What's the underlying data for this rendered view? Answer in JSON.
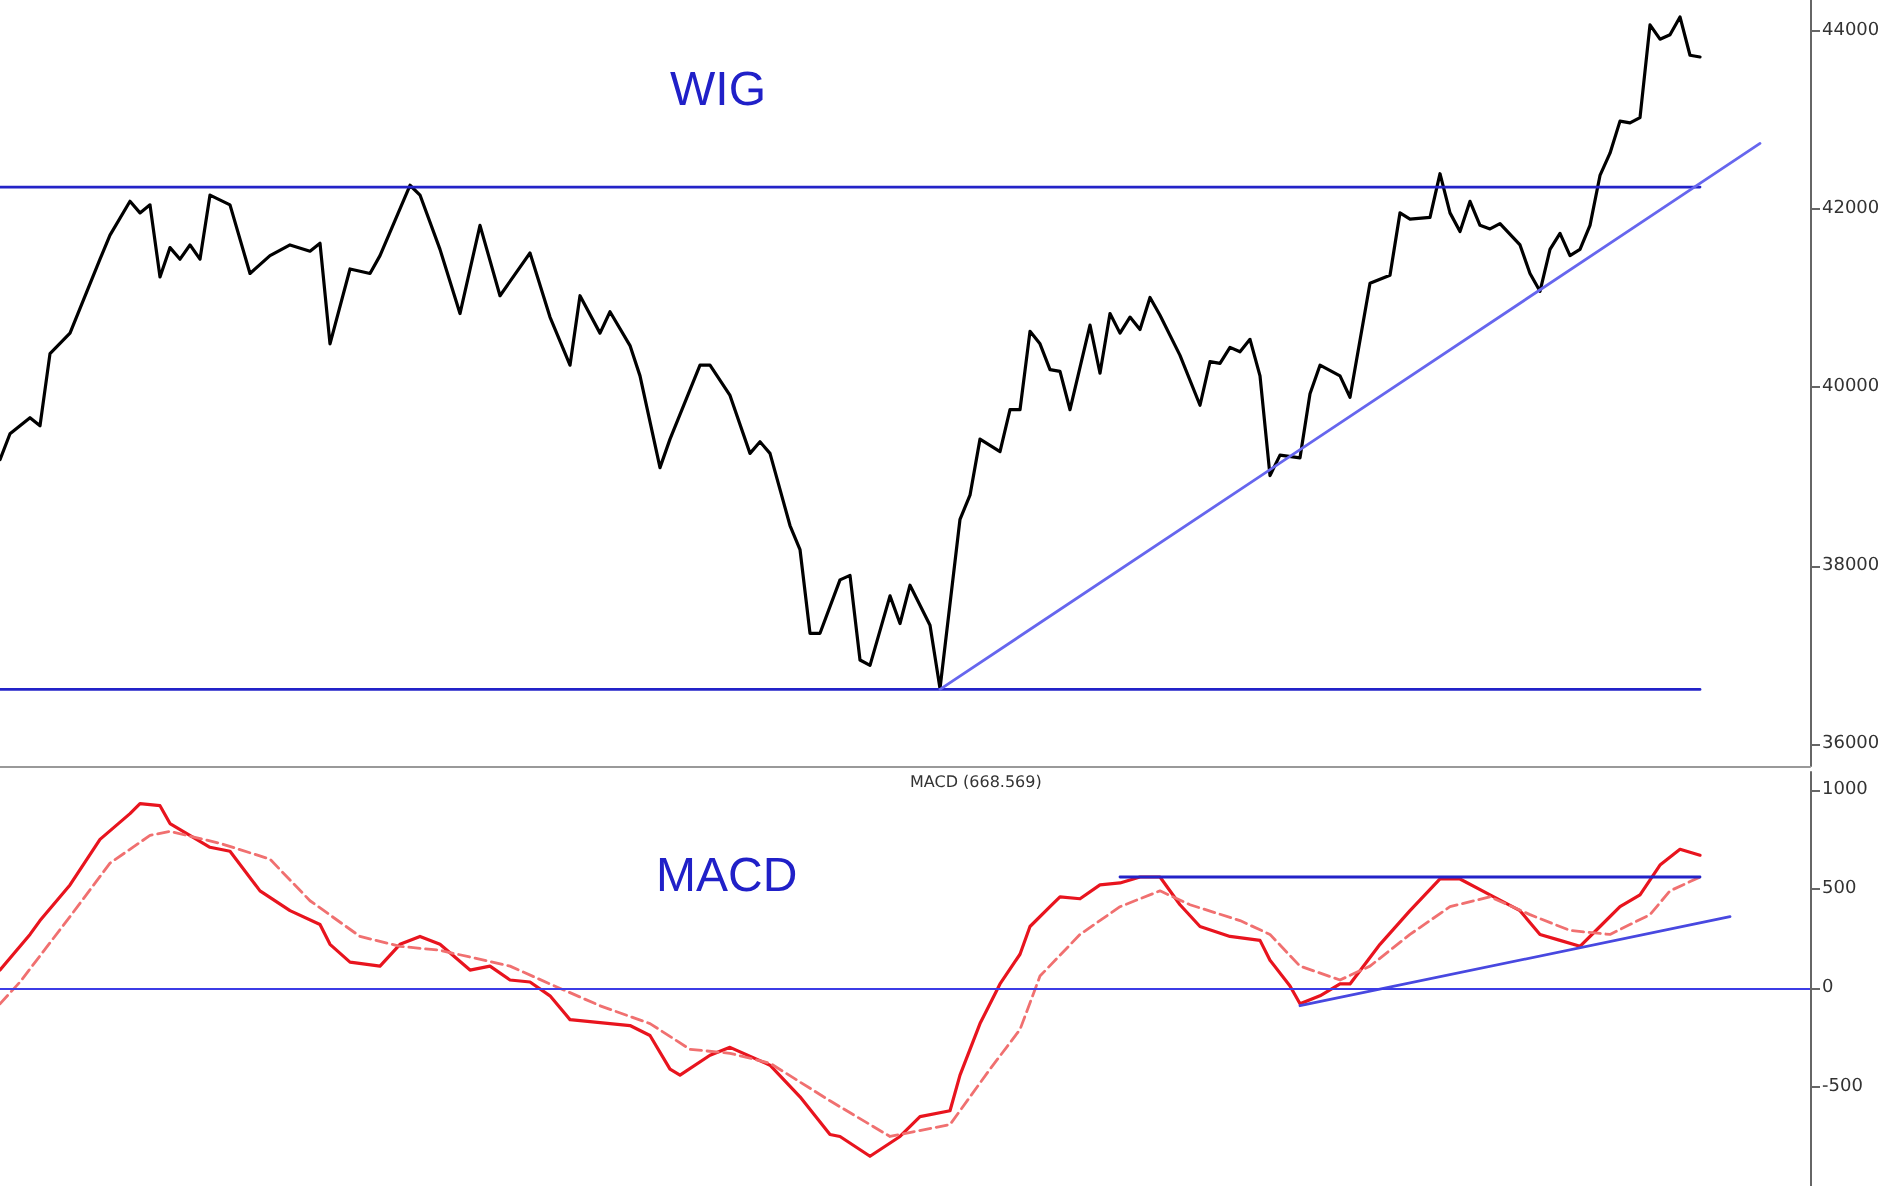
{
  "chart_data": [
    {
      "type": "line",
      "title": "WIG",
      "tick_labels": "y",
      "ylim": [
        35750,
        44350
      ],
      "yticks": [
        36000,
        38000,
        40000,
        42000,
        44000
      ],
      "categories": [
        null,
        null,
        null,
        null,
        null,
        null,
        null,
        null,
        null,
        null,
        null,
        null,
        null,
        null,
        null,
        null,
        null,
        null,
        null,
        null,
        null,
        null,
        null,
        null,
        null,
        null,
        null,
        null,
        null,
        null,
        null,
        null,
        null,
        null,
        null,
        null,
        null,
        null,
        null,
        null,
        null,
        null,
        null,
        null,
        null,
        null,
        null,
        null,
        null,
        null,
        null,
        null,
        null,
        null,
        null,
        null,
        null,
        null,
        null,
        null,
        null,
        null,
        null,
        null,
        null,
        null,
        null,
        null,
        null,
        null,
        null,
        null,
        null,
        null,
        null,
        null,
        null,
        null,
        null,
        null,
        null,
        null,
        null,
        null,
        null,
        null,
        null,
        null,
        null,
        null,
        null,
        null,
        null,
        null,
        null,
        null,
        null,
        null,
        null,
        null,
        null,
        null,
        null,
        null,
        null,
        null,
        null,
        null,
        null,
        null,
        null,
        null,
        null,
        null,
        null,
        null,
        null,
        null,
        null,
        null,
        null,
        null,
        null,
        null,
        null,
        null,
        null,
        null,
        null,
        null,
        null,
        null,
        null,
        null,
        null,
        null,
        null,
        null,
        null,
        null,
        null,
        null,
        null,
        null,
        null,
        null,
        null,
        null,
        null,
        null,
        null,
        null,
        null,
        null,
        null,
        null,
        null,
        null,
        null,
        null,
        null,
        null,
        null,
        null,
        null,
        null,
        null,
        null,
        null,
        null,
        null,
        null,
        null,
        null,
        null,
        null,
        null,
        null,
        null,
        null,
        null,
        null
      ],
      "series": [
        {
          "color": "#000000",
          "values": [
            39190,
            39480,
            null,
            39660,
            39570,
            40380,
            null,
            40610,
            null,
            null,
            41440,
            41710,
            null,
            42090,
            41960,
            42050,
            41240,
            41570,
            41440,
            41600,
            41440,
            42160,
            null,
            42050,
            null,
            41280,
            null,
            41480,
            null,
            41600,
            null,
            41530,
            41620,
            40490,
            null,
            41330,
            null,
            41280,
            41480,
            null,
            null,
            42270,
            42160,
            null,
            41550,
            null,
            40830,
            null,
            41820,
            null,
            41030,
            null,
            null,
            41510,
            null,
            40790,
            null,
            40250,
            41030,
            null,
            40610,
            40850,
            null,
            40470,
            40130,
            null,
            39100,
            39420,
            null,
            null,
            40250,
            40250,
            null,
            39910,
            null,
            39260,
            39390,
            39260,
            null,
            38450,
            38180,
            37240,
            37240,
            null,
            37840,
            37890,
            36940,
            36880,
            null,
            37660,
            37350,
            37780,
            null,
            37330,
            36620,
            null,
            38520,
            38790,
            39420,
            null,
            39280,
            39750,
            39750,
            40630,
            40490,
            40200,
            40180,
            39750,
            null,
            40700,
            40160,
            40830,
            40610,
            40790,
            40650,
            41010,
            40810,
            null,
            40360,
            null,
            39800,
            40290,
            40270,
            40450,
            40400,
            40540,
            40130,
            39010,
            39240,
            null,
            39210,
            39930,
            40250,
            null,
            40130,
            39890,
            null,
            41170,
            null,
            41260,
            41960,
            41890,
            null,
            41910,
            42400,
            41960,
            41750,
            42090,
            41820,
            41780,
            41840,
            null,
            41600,
            41280,
            41080,
            41550,
            41730,
            41480,
            41550,
            41820,
            42380,
            42630,
            42990,
            42970,
            43030,
            44070,
            43910,
            43960,
            44160,
            43730,
            43710,
            null,
            null,
            null,
            null,
            null,
            null,
            null,
            null,
            null,
            null,
            null
          ]
        },
        {
          "color": "#2323c8",
          "values": [
            42250,
            null,
            null,
            null,
            null,
            null,
            null,
            null,
            null,
            null,
            null,
            null,
            null,
            null,
            null,
            null,
            null,
            null,
            null,
            null,
            null,
            null,
            null,
            null,
            null,
            null,
            null,
            null,
            null,
            null,
            null,
            null,
            null,
            null,
            null,
            null,
            null,
            null,
            null,
            null,
            null,
            null,
            null,
            null,
            null,
            null,
            null,
            null,
            null,
            null,
            null,
            null,
            null,
            null,
            null,
            null,
            null,
            null,
            null,
            null,
            null,
            null,
            null,
            null,
            null,
            null,
            null,
            null,
            null,
            null,
            null,
            null,
            null,
            null,
            null,
            null,
            null,
            null,
            null,
            null,
            null,
            null,
            null,
            null,
            null,
            null,
            null,
            null,
            null,
            null,
            null,
            null,
            null,
            null,
            null,
            null,
            null,
            null,
            null,
            null,
            null,
            null,
            null,
            null,
            null,
            null,
            null,
            null,
            null,
            null,
            null,
            null,
            null,
            null,
            null,
            null,
            null,
            null,
            null,
            null,
            null,
            null,
            null,
            null,
            null,
            null,
            null,
            null,
            null,
            null,
            null,
            null,
            null,
            null,
            null,
            null,
            null,
            null,
            null,
            null,
            null,
            null,
            null,
            null,
            null,
            null,
            null,
            null,
            null,
            null,
            null,
            null,
            null,
            null,
            null,
            null,
            null,
            null,
            null,
            null,
            null,
            null,
            null,
            null,
            null,
            null,
            null,
            null,
            null,
            null,
            42250,
            null,
            null,
            null,
            null,
            null,
            null,
            null,
            null,
            null,
            null,
            null
          ]
        },
        {
          "color": "#2323c8",
          "values": [
            36610,
            null,
            null,
            null,
            null,
            null,
            null,
            null,
            null,
            null,
            null,
            null,
            null,
            null,
            null,
            null,
            null,
            null,
            null,
            null,
            null,
            null,
            null,
            null,
            null,
            null,
            null,
            null,
            null,
            null,
            null,
            null,
            null,
            null,
            null,
            null,
            null,
            null,
            null,
            null,
            null,
            null,
            null,
            null,
            null,
            null,
            null,
            null,
            null,
            null,
            null,
            null,
            null,
            null,
            null,
            null,
            null,
            null,
            null,
            null,
            null,
            null,
            null,
            null,
            null,
            null,
            null,
            null,
            null,
            null,
            null,
            null,
            null,
            null,
            null,
            null,
            null,
            null,
            null,
            null,
            null,
            null,
            null,
            null,
            null,
            null,
            null,
            null,
            null,
            null,
            null,
            null,
            null,
            null,
            null,
            null,
            null,
            null,
            null,
            null,
            null,
            null,
            null,
            null,
            null,
            null,
            null,
            null,
            null,
            null,
            null,
            null,
            null,
            null,
            null,
            null,
            null,
            null,
            null,
            null,
            null,
            null,
            null,
            null,
            null,
            null,
            null,
            null,
            null,
            null,
            null,
            null,
            null,
            null,
            null,
            null,
            null,
            null,
            null,
            null,
            null,
            null,
            null,
            null,
            null,
            null,
            null,
            null,
            null,
            null,
            null,
            null,
            null,
            null,
            null,
            null,
            null,
            null,
            null,
            null,
            null,
            null,
            null,
            null,
            null,
            null,
            null,
            null,
            null,
            null,
            36610,
            null,
            null,
            null,
            null,
            null,
            null,
            null,
            null,
            null,
            null,
            null
          ]
        },
        {
          "color": "#6666ee",
          "values": [
            null,
            null,
            null,
            null,
            null,
            null,
            null,
            null,
            null,
            null,
            null,
            null,
            null,
            null,
            null,
            null,
            null,
            null,
            null,
            null,
            null,
            null,
            null,
            null,
            null,
            null,
            null,
            null,
            null,
            null,
            null,
            null,
            null,
            null,
            null,
            null,
            null,
            null,
            null,
            null,
            null,
            null,
            null,
            null,
            null,
            null,
            null,
            null,
            null,
            null,
            null,
            null,
            null,
            null,
            null,
            null,
            null,
            null,
            null,
            null,
            null,
            null,
            null,
            null,
            null,
            null,
            null,
            null,
            null,
            null,
            null,
            null,
            null,
            null,
            null,
            null,
            null,
            null,
            null,
            null,
            null,
            null,
            null,
            null,
            null,
            null,
            null,
            null,
            null,
            null,
            null,
            null,
            null,
            null,
            36610,
            null,
            null,
            null,
            null,
            null,
            null,
            null,
            null,
            null,
            null,
            null,
            null,
            null,
            null,
            null,
            null,
            null,
            null,
            null,
            null,
            null,
            null,
            null,
            null,
            null,
            null,
            null,
            null,
            null,
            null,
            null,
            null,
            null,
            null,
            null,
            null,
            null,
            null,
            null,
            null,
            null,
            null,
            null,
            null,
            null,
            null,
            null,
            null,
            null,
            null,
            null,
            null,
            null,
            null,
            null,
            null,
            null,
            null,
            null,
            null,
            null,
            null,
            null,
            null,
            null,
            null,
            null,
            null,
            null,
            null,
            null,
            null,
            null,
            null,
            null,
            null,
            null,
            null,
            null,
            null,
            null,
            42740,
            null,
            null,
            null,
            null,
            null
          ]
        }
      ]
    },
    {
      "type": "line",
      "title": "MACD",
      "annotations": [
        "MACD (668.569)"
      ],
      "tick_labels": "y",
      "ylim": [
        -1000,
        1090
      ],
      "yticks": [
        -500,
        0,
        500,
        1000
      ],
      "ref_lines": [
        {
          "axis": "y",
          "value": 0,
          "color": "#3c3ce6"
        }
      ],
      "categories": [
        null,
        null,
        null,
        null,
        null,
        null,
        null,
        null,
        null,
        null,
        null,
        null,
        null,
        null,
        null,
        null,
        null,
        null,
        null,
        null,
        null,
        null,
        null,
        null,
        null,
        null,
        null,
        null,
        null,
        null,
        null,
        null,
        null,
        null,
        null,
        null,
        null,
        null,
        null,
        null,
        null,
        null,
        null,
        null,
        null,
        null,
        null,
        null,
        null,
        null,
        null,
        null,
        null,
        null,
        null,
        null,
        null,
        null,
        null,
        null,
        null,
        null,
        null,
        null,
        null,
        null,
        null,
        null,
        null,
        null,
        null,
        null,
        null,
        null,
        null,
        null,
        null,
        null,
        null,
        null,
        null,
        null,
        null,
        null,
        null,
        null,
        null,
        null,
        null,
        null,
        null,
        null,
        null,
        null,
        null,
        null,
        null,
        null,
        null,
        null,
        null,
        null,
        null,
        null,
        null,
        null,
        null,
        null,
        null,
        null,
        null,
        null,
        null,
        null,
        null,
        null,
        null,
        null,
        null,
        null,
        null,
        null,
        null,
        null,
        null,
        null,
        null,
        null,
        null,
        null,
        null,
        null,
        null,
        null,
        null,
        null,
        null,
        null,
        null,
        null,
        null,
        null,
        null,
        null,
        null,
        null,
        null,
        null,
        null,
        null,
        null,
        null,
        null,
        null,
        null,
        null,
        null,
        null,
        null,
        null,
        null,
        null,
        null,
        null,
        null,
        null,
        null,
        null,
        null,
        null,
        null,
        null,
        null,
        null,
        null,
        null,
        null,
        null,
        null,
        null,
        null,
        null
      ],
      "series": [
        {
          "color": "#e8141e",
          "values": [
            90,
            null,
            null,
            270,
            340,
            null,
            null,
            520,
            null,
            null,
            750,
            null,
            null,
            880,
            930,
            null,
            920,
            830,
            null,
            null,
            null,
            710,
            null,
            690,
            null,
            null,
            490,
            null,
            null,
            390,
            null,
            null,
            320,
            220,
            null,
            130,
            null,
            null,
            110,
            null,
            220,
            null,
            260,
            null,
            220,
            null,
            null,
            90,
            null,
            110,
            null,
            40,
            null,
            30,
            null,
            -40,
            null,
            -160,
            null,
            -170,
            null,
            null,
            null,
            -190,
            null,
            -240,
            null,
            -410,
            -440,
            null,
            null,
            -340,
            null,
            -300,
            null,
            null,
            null,
            -390,
            null,
            null,
            -550,
            null,
            null,
            -740,
            -750,
            null,
            null,
            -850,
            null,
            null,
            -750,
            null,
            -650,
            null,
            null,
            -620,
            -440,
            null,
            -180,
            null,
            20,
            null,
            170,
            310,
            null,
            410,
            460,
            null,
            450,
            null,
            520,
            null,
            530,
            null,
            560,
            null,
            560,
            null,
            420,
            null,
            310,
            null,
            null,
            260,
            null,
            null,
            240,
            140,
            null,
            10,
            -80,
            null,
            -40,
            null,
            20,
            20,
            null,
            null,
            220,
            null,
            null,
            390,
            null,
            null,
            550,
            null,
            550,
            null,
            null,
            470,
            null,
            null,
            390,
            null,
            270,
            null,
            240,
            null,
            210,
            null,
            310,
            null,
            410,
            null,
            470,
            null,
            620,
            null,
            700,
            null,
            670,
            null,
            null,
            null,
            null,
            null,
            null,
            null,
            null,
            null,
            null,
            null
          ]
        },
        {
          "color": "#f07070",
          "line_style": "dashed",
          "values": [
            -80,
            null,
            30,
            null,
            null,
            null,
            null,
            360,
            null,
            null,
            null,
            630,
            null,
            null,
            null,
            770,
            null,
            790,
            null,
            null,
            null,
            null,
            730,
            null,
            null,
            null,
            null,
            650,
            null,
            null,
            null,
            440,
            null,
            null,
            null,
            null,
            260,
            null,
            null,
            null,
            210,
            null,
            null,
            null,
            190,
            null,
            null,
            null,
            null,
            null,
            null,
            110,
            null,
            null,
            null,
            20,
            null,
            null,
            null,
            null,
            -90,
            null,
            null,
            null,
            null,
            -180,
            null,
            null,
            null,
            -310,
            null,
            null,
            null,
            -330,
            null,
            null,
            null,
            -380,
            null,
            null,
            null,
            null,
            null,
            -570,
            null,
            null,
            null,
            null,
            null,
            -750,
            null,
            null,
            null,
            null,
            null,
            -690,
            null,
            null,
            null,
            -410,
            null,
            null,
            -210,
            null,
            60,
            null,
            null,
            null,
            270,
            null,
            null,
            null,
            410,
            null,
            null,
            null,
            490,
            null,
            null,
            420,
            null,
            null,
            null,
            null,
            340,
            null,
            null,
            270,
            null,
            null,
            110,
            null,
            null,
            null,
            40,
            null,
            null,
            110,
            null,
            null,
            null,
            270,
            null,
            null,
            null,
            410,
            null,
            null,
            null,
            460,
            null,
            null,
            null,
            370,
            null,
            null,
            null,
            290,
            null,
            null,
            null,
            270,
            null,
            null,
            null,
            370,
            null,
            490,
            null,
            null,
            560,
            null,
            null,
            null,
            null,
            null,
            null,
            null,
            null,
            null,
            null,
            null
          ]
        },
        {
          "color": "#2323c8",
          "values": [
            null,
            null,
            null,
            null,
            null,
            null,
            null,
            null,
            null,
            null,
            null,
            null,
            null,
            null,
            null,
            null,
            null,
            null,
            null,
            null,
            null,
            null,
            null,
            null,
            null,
            null,
            null,
            null,
            null,
            null,
            null,
            null,
            null,
            null,
            null,
            null,
            null,
            null,
            null,
            null,
            null,
            null,
            null,
            null,
            null,
            null,
            null,
            null,
            null,
            null,
            null,
            null,
            null,
            null,
            null,
            null,
            null,
            null,
            null,
            null,
            null,
            null,
            null,
            null,
            null,
            null,
            null,
            null,
            null,
            null,
            null,
            null,
            null,
            null,
            null,
            null,
            null,
            null,
            null,
            null,
            null,
            null,
            null,
            null,
            null,
            null,
            null,
            null,
            null,
            null,
            null,
            null,
            null,
            null,
            null,
            null,
            null,
            null,
            null,
            null,
            null,
            null,
            null,
            null,
            null,
            null,
            null,
            null,
            null,
            null,
            null,
            null,
            560,
            null,
            null,
            null,
            null,
            null,
            null,
            null,
            null,
            null,
            null,
            null,
            null,
            null,
            null,
            null,
            null,
            null,
            null,
            null,
            null,
            null,
            null,
            null,
            null,
            null,
            null,
            null,
            null,
            null,
            null,
            null,
            null,
            null,
            null,
            null,
            null,
            null,
            null,
            null,
            null,
            null,
            null,
            null,
            null,
            null,
            null,
            null,
            null,
            null,
            null,
            null,
            null,
            null,
            null,
            null,
            null,
            null,
            560,
            null,
            null,
            null,
            null,
            null,
            null,
            null,
            null,
            null,
            null,
            null
          ]
        },
        {
          "color": "#4848e0",
          "values": [
            null,
            null,
            null,
            null,
            null,
            null,
            null,
            null,
            null,
            null,
            null,
            null,
            null,
            null,
            null,
            null,
            null,
            null,
            null,
            null,
            null,
            null,
            null,
            null,
            null,
            null,
            null,
            null,
            null,
            null,
            null,
            null,
            null,
            null,
            null,
            null,
            null,
            null,
            null,
            null,
            null,
            null,
            null,
            null,
            null,
            null,
            null,
            null,
            null,
            null,
            null,
            null,
            null,
            null,
            null,
            null,
            null,
            null,
            null,
            null,
            null,
            null,
            null,
            null,
            null,
            null,
            null,
            null,
            null,
            null,
            null,
            null,
            null,
            null,
            null,
            null,
            null,
            null,
            null,
            null,
            null,
            null,
            null,
            null,
            null,
            null,
            null,
            null,
            null,
            null,
            null,
            null,
            null,
            null,
            null,
            null,
            null,
            null,
            null,
            null,
            null,
            null,
            null,
            null,
            null,
            null,
            null,
            null,
            null,
            null,
            null,
            null,
            null,
            null,
            null,
            null,
            null,
            null,
            null,
            null,
            null,
            null,
            null,
            null,
            null,
            null,
            null,
            null,
            null,
            null,
            -90,
            null,
            null,
            null,
            null,
            null,
            null,
            null,
            null,
            null,
            null,
            null,
            null,
            null,
            null,
            null,
            null,
            null,
            null,
            null,
            null,
            null,
            null,
            null,
            null,
            null,
            null,
            null,
            null,
            null,
            null,
            null,
            null,
            null,
            null,
            null,
            null,
            null,
            null,
            null,
            null,
            null,
            null,
            360,
            null,
            null,
            null,
            null,
            null,
            null,
            null,
            null
          ]
        }
      ]
    }
  ]
}
